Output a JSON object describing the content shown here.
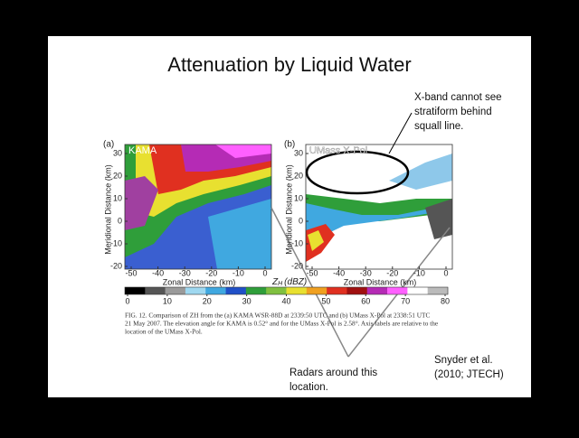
{
  "slide": {
    "title": "Attenuation by Liquid Water",
    "callout": [
      "X-band cannot see",
      "stratiform behind",
      "squall line."
    ],
    "radars_note": [
      "Radars around this",
      "location."
    ],
    "citation": [
      "Snyder et al.",
      "(2010; JTECH)"
    ],
    "figure": {
      "panels": [
        {
          "letter": "(a)",
          "name": "KAMA"
        },
        {
          "letter": "(b)",
          "name": "UMass X-Pol"
        }
      ],
      "y_axis_title": "Meridional Distance (km)",
      "x_axis_title": "Zonal Distance (km)",
      "yticks": [
        30,
        20,
        10,
        0,
        -10,
        -20
      ],
      "xticks": [
        -50,
        -40,
        -30,
        -20,
        -10,
        0
      ],
      "colorbar": {
        "symbol": "Z",
        "subscript": "H",
        "unit": "(dBZ)",
        "ticks": [
          0,
          10,
          20,
          30,
          40,
          50,
          60,
          70,
          80
        ]
      },
      "caption": [
        "FIG. 12. Comparison of ZH from the (a) KAMA WSR-88D at 2339:50 UTC and (b) UMass X-Pol at 2338:51 UTC",
        "21 May 2007. The elevation angle for KAMA is 0.52° and for the UMass X-Pol is 2.58°. Axis labels are relative to the",
        "location of the UMass X-Pol."
      ]
    }
  }
}
